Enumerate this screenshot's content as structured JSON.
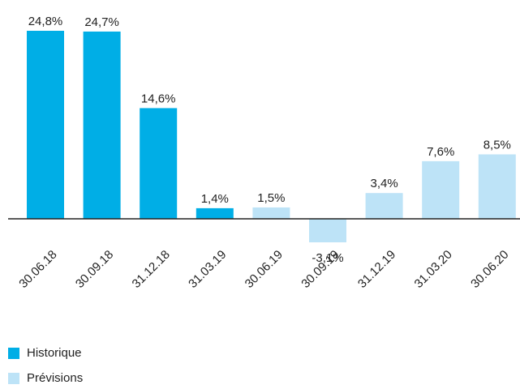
{
  "chart_data": {
    "type": "bar",
    "categories": [
      "30.06.18",
      "30.09.18",
      "31.12.18",
      "31.03.19",
      "30.06.19",
      "30.09.19",
      "31.12.19",
      "31.03.20",
      "30.06.20"
    ],
    "series": [
      {
        "name": "Historique",
        "color": "#00aee6",
        "values": [
          24.8,
          24.7,
          14.6,
          1.4,
          null,
          null,
          null,
          null,
          null
        ],
        "value_labels": [
          "24,8%",
          "24,7%",
          "14,6%",
          "1,4%",
          null,
          null,
          null,
          null,
          null
        ]
      },
      {
        "name": "Prévisions",
        "color": "#bde3f7",
        "values": [
          null,
          null,
          null,
          null,
          1.5,
          -3.1,
          3.4,
          7.6,
          8.5
        ],
        "value_labels": [
          null,
          null,
          null,
          null,
          "1,5%",
          "-3,1%",
          "3,4%",
          "7,6%",
          "8,5%"
        ]
      }
    ]
  }
}
